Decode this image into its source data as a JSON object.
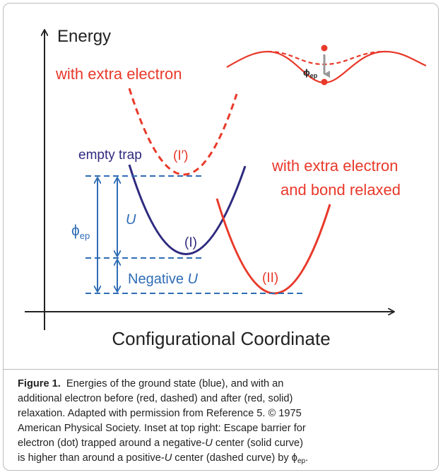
{
  "diagram": {
    "y_axis": "Energy",
    "x_axis": "Configurational Coordinate",
    "labels": {
      "extra_electron": "with extra electron",
      "empty_trap": "empty trap",
      "state_I_prime": "(I′)",
      "relaxed_line1": "with extra electron",
      "relaxed_line2": "and bond relaxed",
      "U": "U",
      "state_I": "(I)",
      "phi": "ϕ",
      "phi_sub": "ep",
      "negative": "Negative ",
      "negative_U": "U",
      "state_II": "(II)",
      "inset_phi": "ϕ",
      "inset_phi_sub": "ep"
    }
  },
  "caption": {
    "label": "Figure 1.",
    "lines": [
      [
        "  Energies of the ground state (blue), and with an"
      ],
      [
        "additional electron before (red, dashed) and after (red, solid)"
      ],
      [
        "relaxation. Adapted with permission from Reference 5. © 1975"
      ],
      [
        "American Physical Society. Inset at top right: Escape barrier for"
      ],
      [
        "electron (dot) trapped around a negative-",
        "U",
        " center (solid curve)"
      ],
      [
        "is higher than around a positive-",
        "U",
        " center (dashed curve) by ",
        "ϕ",
        "ep",
        "."
      ]
    ]
  }
}
